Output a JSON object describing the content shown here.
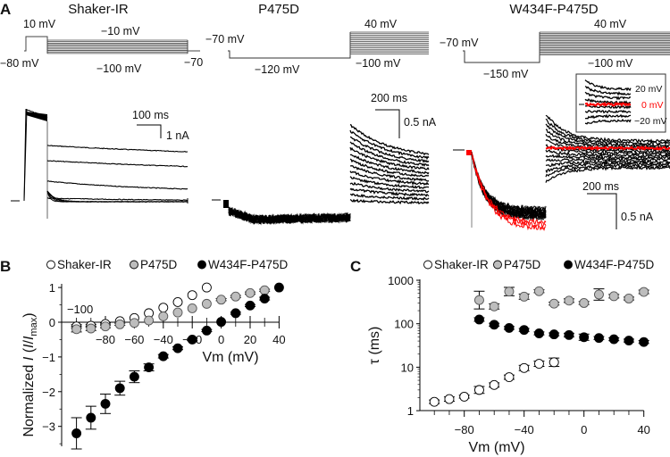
{
  "panel_a": {
    "letter": "A",
    "shaker": {
      "title": "Shaker-IR",
      "v_prepulse": "10 mV",
      "v_top": "−10 mV",
      "v_hold": "−80 mV",
      "v_bottom": "−100 mV",
      "v_tail": "−70",
      "scale_time": "100 ms",
      "scale_current": "1 nA"
    },
    "p475d": {
      "title": "P475D",
      "v_hold": "−70 mV",
      "v_pre": "−120 mV",
      "v_top": "40 mV",
      "v_bottom": "−100 mV",
      "scale_time": "200 ms",
      "scale_current": "0.5 nA"
    },
    "w434f": {
      "title": "W434F-P475D",
      "v_hold": "−70 mV",
      "v_pre": "−150 mV",
      "v_top": "40 mV",
      "v_bottom": "−100 mV",
      "scale_time": "200 ms",
      "scale_current": "0.5 nA",
      "inset": {
        "label_top": "20 mV",
        "label_mid": "0 mV",
        "label_bottom": "−20 mV"
      }
    },
    "colors": {
      "trace": "#000000",
      "highlight": "#ff0000"
    }
  },
  "chart_data": [
    {
      "panel": "B",
      "type": "scatter",
      "xlabel": "Vm (mV)",
      "ylabel_parts": [
        "Normalized ",
        "I",
        " (",
        "I",
        "/",
        "I",
        "max",
        ")"
      ],
      "xlim": [
        -100,
        40
      ],
      "ylim": [
        -3.6,
        1.1
      ],
      "xticks": [
        -80,
        -60,
        -40,
        -20,
        0,
        20,
        40
      ],
      "xtick_labels": [
        "−80",
        "−60",
        "−40",
        "−20",
        "0",
        "20",
        "40"
      ],
      "xtick_extra_label": "−100",
      "yticks": [
        1,
        0,
        -1,
        -2,
        -3
      ],
      "ytick_labels": [
        "1",
        "0",
        "−1",
        "−2",
        "−3"
      ],
      "legend": "top",
      "series": [
        {
          "name": "Shaker-IR",
          "fill": "#ffffff",
          "x": [
            -100,
            -90,
            -80,
            -70,
            -60,
            -50,
            -40,
            -30,
            -20,
            -10
          ],
          "y": [
            -0.12,
            -0.1,
            -0.05,
            0.03,
            0.12,
            0.26,
            0.42,
            0.58,
            0.78,
            1.0
          ],
          "err": [
            0.05,
            0.04,
            0.03,
            0.02,
            0.02,
            0.02,
            0.02,
            0.02,
            0.02,
            0
          ]
        },
        {
          "name": "P475D",
          "fill": "#bdbdbd",
          "x": [
            -100,
            -90,
            -80,
            -70,
            -60,
            -50,
            -40,
            -30,
            -20,
            -10,
            0,
            10,
            20,
            30
          ],
          "y": [
            -0.2,
            -0.18,
            -0.12,
            -0.06,
            -0.02,
            0.05,
            0.17,
            0.28,
            0.4,
            0.53,
            0.65,
            0.74,
            0.84,
            0.92
          ],
          "err": [
            0.08,
            0.06,
            0.04,
            0.03,
            0.02,
            0.02,
            0.02,
            0.02,
            0.02,
            0.02,
            0.03,
            0.03,
            0.03,
            0.03
          ]
        },
        {
          "name": "W434F-P475D",
          "fill": "#000000",
          "x": [
            -100,
            -90,
            -80,
            -70,
            -60,
            -50,
            -40,
            -30,
            -20,
            -10,
            0,
            10,
            20,
            30,
            40
          ],
          "y": [
            -3.2,
            -2.75,
            -2.35,
            -1.9,
            -1.57,
            -1.3,
            -0.98,
            -0.75,
            -0.5,
            -0.24,
            0.01,
            0.26,
            0.48,
            0.68,
            1.0
          ],
          "err": [
            0.45,
            0.33,
            0.28,
            0.2,
            0.17,
            0.1,
            0.05,
            0.04,
            0.03,
            0.03,
            0.02,
            0.03,
            0.03,
            0.04,
            0
          ]
        }
      ]
    },
    {
      "panel": "C",
      "type": "scatter",
      "yscale": "log",
      "xlabel": "Vm (mV)",
      "ylabel": "τ (ms)",
      "xlim": [
        -105,
        42
      ],
      "ylim": [
        1,
        1000
      ],
      "xticks": [
        -80,
        -40,
        0,
        40
      ],
      "xtick_labels": [
        "−80",
        "−40",
        "0",
        "40"
      ],
      "yticks": [
        1000,
        100,
        10,
        1
      ],
      "ytick_labels": [
        "1000",
        "100",
        "10",
        "1"
      ],
      "legend": "top",
      "series": [
        {
          "name": "Shaker-IR",
          "fill": "#ffffff",
          "x": [
            -100,
            -90,
            -80,
            -70,
            -60,
            -50,
            -40,
            -30,
            -20
          ],
          "y": [
            1.6,
            1.85,
            2.1,
            3.0,
            3.9,
            5.9,
            9.6,
            12,
            13
          ],
          "err_factor": [
            1.1,
            1.12,
            1.08,
            1.2,
            1.12,
            1.12,
            1.15,
            1.15,
            1.25
          ]
        },
        {
          "name": "P475D",
          "fill": "#bdbdbd",
          "x": [
            -70,
            -60,
            -50,
            -40,
            -30,
            -20,
            -10,
            0,
            10,
            20,
            30,
            40
          ],
          "y": [
            350,
            250,
            550,
            420,
            560,
            290,
            340,
            300,
            470,
            430,
            380,
            540
          ],
          "err_factor": [
            1.6,
            1.15,
            1.25,
            1.15,
            1.08,
            1.08,
            1.1,
            1.08,
            1.35,
            1.1,
            1.08,
            1.1
          ]
        },
        {
          "name": "W434F-P475D",
          "fill": "#000000",
          "x": [
            -70,
            -60,
            -50,
            -40,
            -30,
            -20,
            -10,
            0,
            10,
            20,
            30,
            40
          ],
          "y": [
            125,
            95,
            80,
            72,
            60,
            57,
            55,
            49,
            47,
            44,
            41,
            38
          ],
          "err_factor": [
            1.1,
            1.08,
            1.08,
            1.08,
            1.08,
            1.08,
            1.1,
            1.18,
            1.08,
            1.08,
            1.08,
            1.08
          ]
        }
      ]
    }
  ]
}
